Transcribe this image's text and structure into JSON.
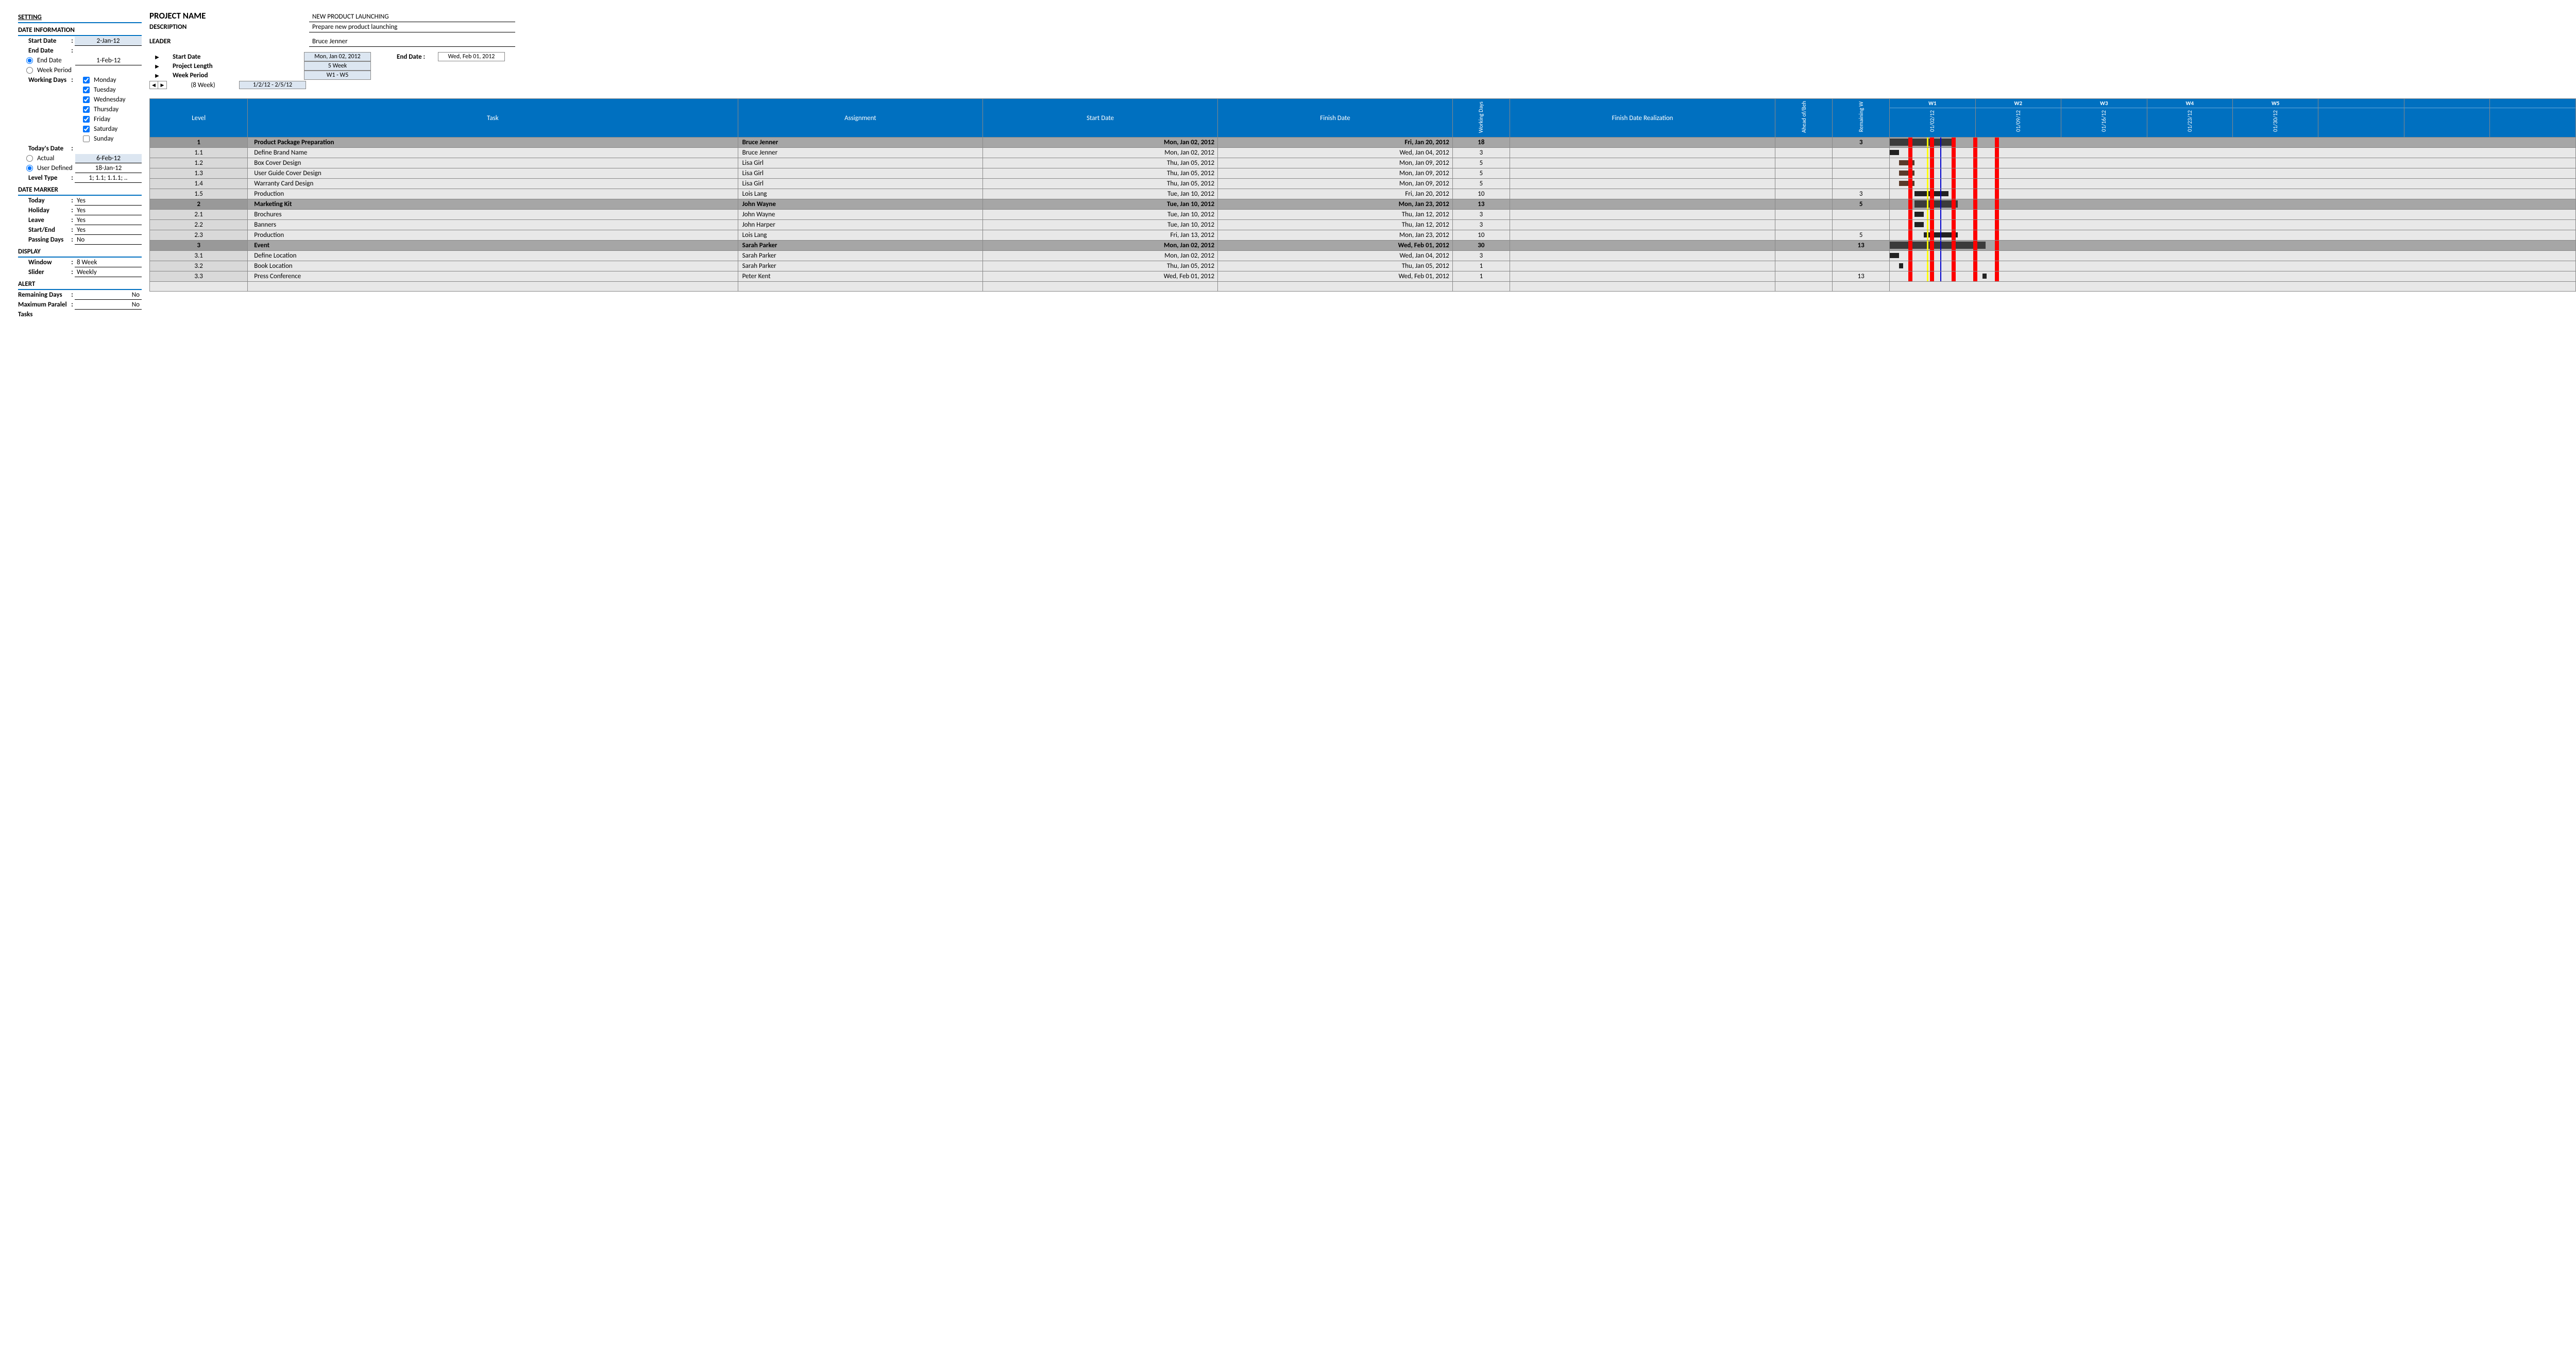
{
  "sidebar": {
    "setting": "SETTING",
    "date_info": "DATE INFORMATION",
    "start_date_lbl": "Start Date",
    "start_date": "2-Jan-12",
    "end_date_lbl": "End Date",
    "end_date_opt": "End Date",
    "end_date": "1-Feb-12",
    "week_period_opt": "Week Period",
    "working_days_lbl": "Working Days",
    "days": [
      "Monday",
      "Tuesday",
      "Wednesday",
      "Thursday",
      "Friday",
      "Saturday",
      "Sunday"
    ],
    "day_checked": [
      true,
      true,
      true,
      true,
      true,
      true,
      false
    ],
    "todays_date_lbl": "Today's Date",
    "actual_opt": "Actual",
    "actual": "6-Feb-12",
    "userdef_opt": "User Defined",
    "userdef": "18-Jan-12",
    "level_type_lbl": "Level Type",
    "level_type": "1; 1.1; 1.1.1; ..",
    "date_marker": "DATE MARKER",
    "today_lbl": "Today",
    "today": "Yes",
    "holiday_lbl": "Holiday",
    "holiday": "Yes",
    "leave_lbl": "Leave",
    "leave": "Yes",
    "startend_lbl": "Start/End",
    "startend": "Yes",
    "passing_lbl": "Passing Days",
    "passing": "No",
    "display": "DISPLAY",
    "window_lbl": "Window",
    "window": "8 Week",
    "slider_lbl": "Slider",
    "slider": "Weekly",
    "alert": "ALERT",
    "remaining_lbl": "Remaining Days",
    "remaining": "No",
    "maxpar_lbl": "Maximum Paralel",
    "maxpar": "No",
    "tasks_lbl": "Tasks"
  },
  "project": {
    "name_lbl": "PROJECT NAME",
    "name": "NEW PRODUCT LAUNCHING",
    "desc_lbl": "DESCRIPTION",
    "desc": "Prepare new product launching",
    "leader_lbl": "LEADER",
    "leader": "Bruce Jenner",
    "start_lbl": "Start Date",
    "start": "Mon, Jan 02, 2012",
    "len_lbl": "Project Length",
    "len": "5 Week",
    "wp_lbl": "Week Period",
    "wp": "W1 - W5",
    "slider_hint": "(8 Week)",
    "range": "1/2/12 - 2/5/12",
    "end_lbl": "End Date :",
    "end": "Wed, Feb 01, 2012"
  },
  "cols": {
    "level": "Level",
    "task": "Task",
    "assign": "Assignment",
    "start": "Start Date",
    "finish": "Finish Date",
    "wd": "Working Days",
    "fdr": "Finish Date Realization",
    "ab": "Ahead of/Beh",
    "rw": "Remaining W"
  },
  "weeks": [
    {
      "lbl": "W1",
      "date": "01/02/12"
    },
    {
      "lbl": "W2",
      "date": "01/09/12"
    },
    {
      "lbl": "W3",
      "date": "01/16/12"
    },
    {
      "lbl": "W4",
      "date": "01/23/12"
    },
    {
      "lbl": "W5",
      "date": "01/30/12"
    },
    {
      "lbl": "",
      "date": ""
    },
    {
      "lbl": "",
      "date": ""
    },
    {
      "lbl": "",
      "date": ""
    }
  ],
  "rows": [
    {
      "hdr": true,
      "lvl": "1",
      "task": "Product Package Preparation",
      "assign": "Bruce Jenner",
      "start": "Mon, Jan 02, 2012",
      "finish": "Fri, Jan 20, 2012",
      "wd": "18",
      "rw": "3",
      "bar": {
        "s": 0,
        "w": 120,
        "cls": "bar"
      }
    },
    {
      "lvl": "1.1",
      "task": "Define Brand Name",
      "assign": "Bruce Jenner",
      "start": "Mon, Jan 02, 2012",
      "finish": "Wed, Jan 04, 2012",
      "wd": "3",
      "rw": "",
      "bar": {
        "s": 0,
        "w": 18,
        "cls": "bar sm"
      }
    },
    {
      "lvl": "1.2",
      "task": "Box Cover Design",
      "assign": "Lisa Girl",
      "start": "Thu, Jan 05, 2012",
      "finish": "Mon, Jan 09, 2012",
      "wd": "5",
      "rw": "",
      "bar": {
        "s": 18,
        "w": 30,
        "cls": "bar sm brn"
      }
    },
    {
      "lvl": "1.3",
      "task": "User Guide Cover Design",
      "assign": "Lisa Girl",
      "start": "Thu, Jan 05, 2012",
      "finish": "Mon, Jan 09, 2012",
      "wd": "5",
      "rw": "",
      "bar": {
        "s": 18,
        "w": 30,
        "cls": "bar sm brn"
      }
    },
    {
      "lvl": "1.4",
      "task": "Warranty Card Design",
      "assign": "Lisa Girl",
      "start": "Thu, Jan 05, 2012",
      "finish": "Mon, Jan 09, 2012",
      "wd": "5",
      "rw": "",
      "bar": {
        "s": 18,
        "w": 30,
        "cls": "bar sm brn"
      }
    },
    {
      "lvl": "1.5",
      "task": "Production",
      "assign": "Lois Lang",
      "start": "Tue, Jan 10, 2012",
      "finish": "Fri, Jan 20, 2012",
      "wd": "10",
      "rw": "3",
      "bar": {
        "s": 48,
        "w": 66,
        "cls": "bar sm"
      }
    },
    {
      "hdr": true,
      "lvl": "2",
      "task": "Marketing Kit",
      "assign": "John Wayne",
      "start": "Tue, Jan 10, 2012",
      "finish": "Mon, Jan 23, 2012",
      "wd": "13",
      "rw": "5",
      "bar": {
        "s": 48,
        "w": 84,
        "cls": "bar"
      }
    },
    {
      "lvl": "2.1",
      "task": "Brochures",
      "assign": "John Wayne",
      "start": "Tue, Jan 10, 2012",
      "finish": "Thu, Jan 12, 2012",
      "wd": "3",
      "rw": "",
      "bar": {
        "s": 48,
        "w": 18,
        "cls": "bar sm"
      }
    },
    {
      "lvl": "2.2",
      "task": "Banners",
      "assign": "John Harper",
      "start": "Tue, Jan 10, 2012",
      "finish": "Thu, Jan 12, 2012",
      "wd": "3",
      "rw": "",
      "bar": {
        "s": 48,
        "w": 18,
        "cls": "bar sm"
      }
    },
    {
      "lvl": "2.3",
      "task": "Production",
      "assign": "Lois Lang",
      "start": "Fri, Jan 13, 2012",
      "finish": "Mon, Jan 23, 2012",
      "wd": "10",
      "rw": "5",
      "bar": {
        "s": 66,
        "w": 66,
        "cls": "bar sm"
      }
    },
    {
      "hdr": true,
      "lvl": "3",
      "task": "Event",
      "assign": "Sarah Parker",
      "start": "Mon, Jan 02, 2012",
      "finish": "Wed, Feb 01, 2012",
      "wd": "30",
      "rw": "13",
      "bar": {
        "s": 0,
        "w": 186,
        "cls": "bar"
      }
    },
    {
      "lvl": "3.1",
      "task": "Define Location",
      "assign": "Sarah Parker",
      "start": "Mon, Jan 02, 2012",
      "finish": "Wed, Jan 04, 2012",
      "wd": "3",
      "rw": "",
      "bar": {
        "s": 0,
        "w": 18,
        "cls": "bar sm"
      }
    },
    {
      "lvl": "3.2",
      "task": "Book Location",
      "assign": "Sarah Parker",
      "start": "Thu, Jan 05, 2012",
      "finish": "Thu, Jan 05, 2012",
      "wd": "1",
      "rw": "",
      "bar": {
        "s": 18,
        "w": 8,
        "cls": "bar sm"
      }
    },
    {
      "lvl": "3.3",
      "task": "Press Conference",
      "assign": "Peter Kent",
      "start": "Wed, Feb 01, 2012",
      "finish": "Wed, Feb 01, 2012",
      "wd": "1",
      "rw": "13",
      "bar": {
        "s": 180,
        "w": 8,
        "cls": "bar sm"
      }
    }
  ],
  "markers": {
    "red": [
      36,
      78,
      120,
      162,
      204
    ],
    "yellow": 72,
    "blue": 98
  },
  "colors": {
    "header_bg": "#0070c0",
    "hl": "#dce6f1",
    "row_hdr": "#a6a6a6",
    "row": "#e8e8e8",
    "lvl": "#d9d9d9"
  }
}
